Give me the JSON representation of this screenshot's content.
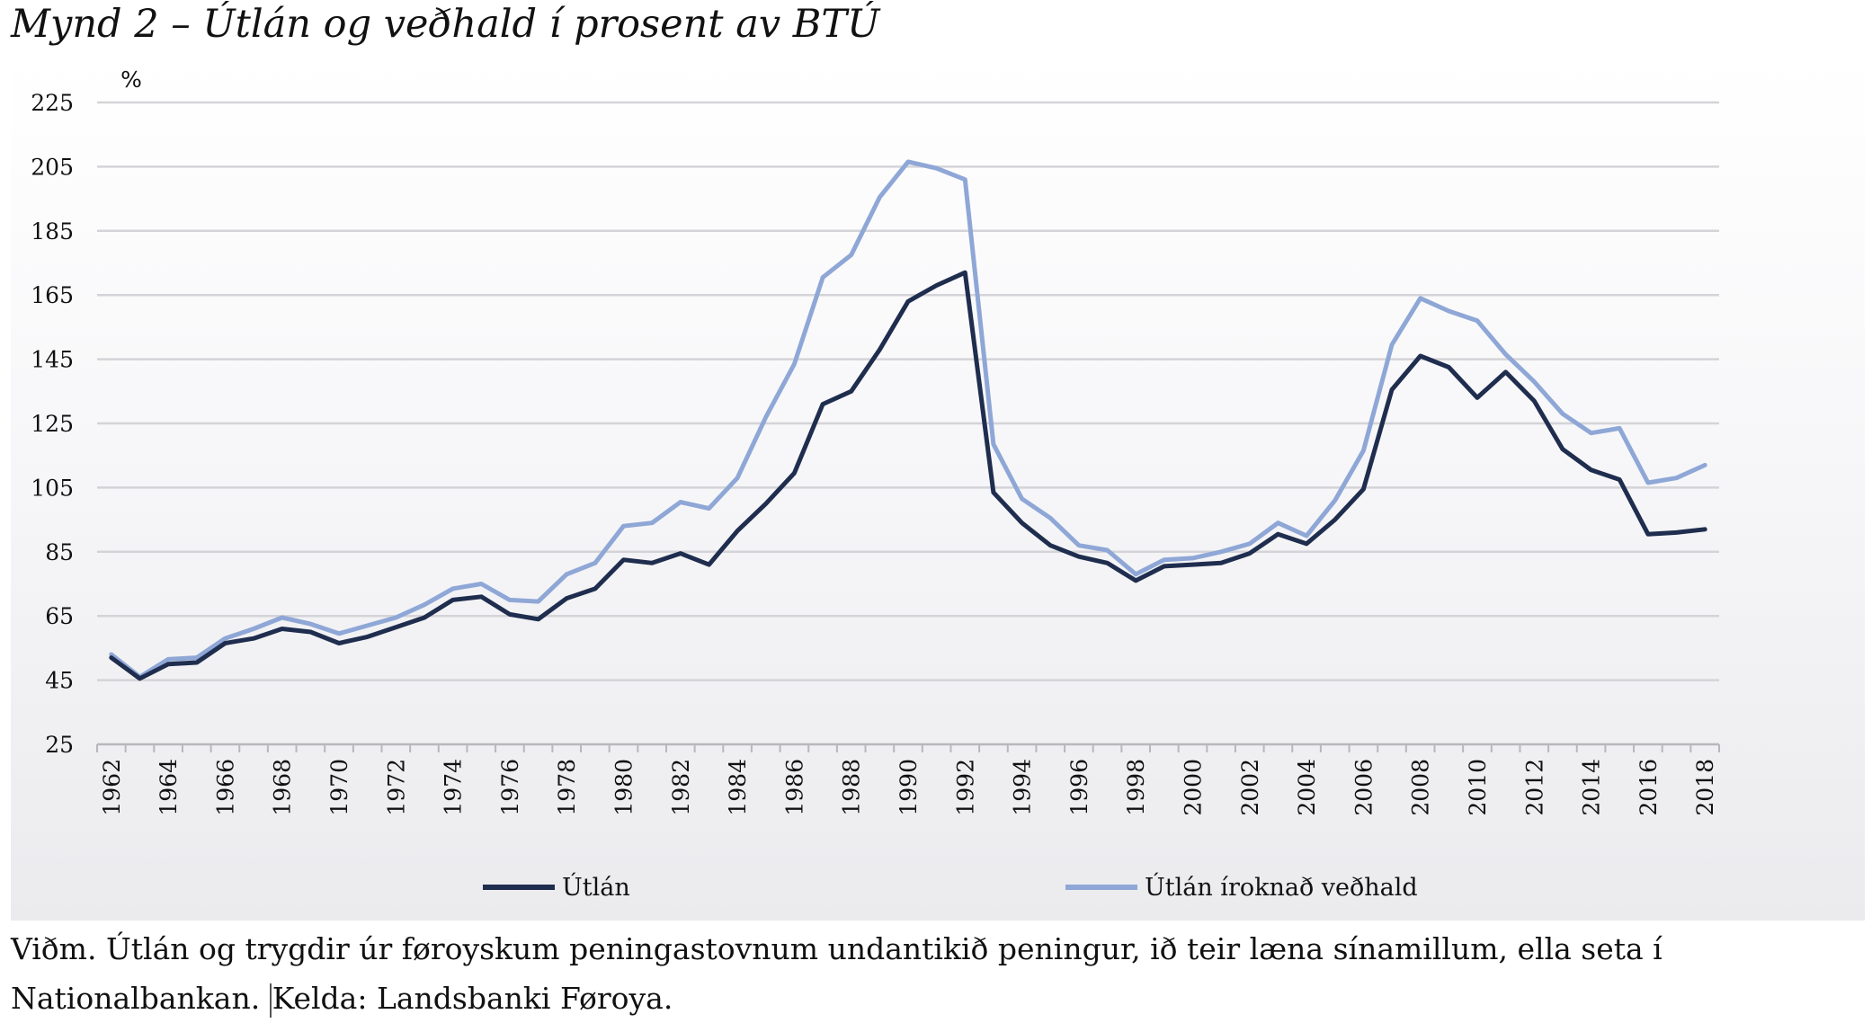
{
  "title": "Mynd 2 – Útlán og veðhald í prosent av BTÚ",
  "note": {
    "line1": "Viðm. Útlán og trygdir úr føroyskum peningastovnum undantikið peningur, ið teir læna sínamillum, ella seta í",
    "line2_a": "Nationalbankan.",
    "line2_b": "Kelda: Landsbanki Føroya."
  },
  "chart_data": {
    "type": "line",
    "ylabel": "%",
    "ylim": [
      25,
      225
    ],
    "yticks": [
      25,
      45,
      65,
      85,
      105,
      125,
      145,
      165,
      185,
      205,
      225
    ],
    "grid": true,
    "legend_position": "bottom",
    "x": [
      1962,
      1963,
      1964,
      1965,
      1966,
      1967,
      1968,
      1969,
      1970,
      1971,
      1972,
      1973,
      1974,
      1975,
      1976,
      1977,
      1978,
      1979,
      1980,
      1981,
      1982,
      1983,
      1984,
      1985,
      1986,
      1987,
      1988,
      1989,
      1990,
      1991,
      1992,
      1993,
      1994,
      1995,
      1996,
      1997,
      1998,
      1999,
      2000,
      2001,
      2002,
      2003,
      2004,
      2005,
      2006,
      2007,
      2008,
      2009,
      2010,
      2011,
      2012,
      2013,
      2014,
      2015,
      2016,
      2017,
      2018
    ],
    "xtick_labels": [
      "1962",
      "1964",
      "1966",
      "1968",
      "1970",
      "1972",
      "1974",
      "1976",
      "1978",
      "1980",
      "1982",
      "1984",
      "1986",
      "1988",
      "1990",
      "1992",
      "1994",
      "1996",
      "1998",
      "2000",
      "2002",
      "2004",
      "2006",
      "2008",
      "2010",
      "2012",
      "2014",
      "2016",
      "2018"
    ],
    "series": [
      {
        "name": "Útlán",
        "color": "#1f2d4e",
        "values": [
          52,
          45.5,
          50,
          50.5,
          56.5,
          58,
          61,
          60,
          56.5,
          58.5,
          61.5,
          64.5,
          70,
          71,
          65.5,
          64,
          70.5,
          73.5,
          82.5,
          81.5,
          84.5,
          81,
          91.5,
          100,
          109.5,
          131,
          135,
          148,
          163,
          168,
          172,
          103.5,
          94,
          87,
          83.5,
          81.5,
          76,
          80.5,
          81,
          81.5,
          84.5,
          90.5,
          87.5,
          95,
          104.5,
          135.5,
          146,
          142.5,
          133,
          141,
          132,
          117,
          110.5,
          107.5,
          90.5,
          91,
          92
        ]
      },
      {
        "name": "Útlán íroknað veðhald",
        "color": "#8fa7d6",
        "values": [
          53,
          46,
          51.5,
          52,
          58,
          61,
          64.5,
          62.5,
          59.5,
          62,
          64.5,
          68.5,
          73.5,
          75,
          70,
          69.5,
          78,
          81.5,
          93,
          94,
          100.5,
          98.5,
          108,
          127,
          143.5,
          170.5,
          177.5,
          195.5,
          206.5,
          204.5,
          201,
          118.5,
          101.5,
          95.5,
          87,
          85.5,
          78,
          82.5,
          83,
          85,
          87.5,
          94,
          90,
          101,
          116.5,
          149.5,
          164,
          160,
          157,
          146.5,
          138,
          128,
          122,
          123.5,
          106.5,
          108,
          112
        ]
      }
    ]
  }
}
